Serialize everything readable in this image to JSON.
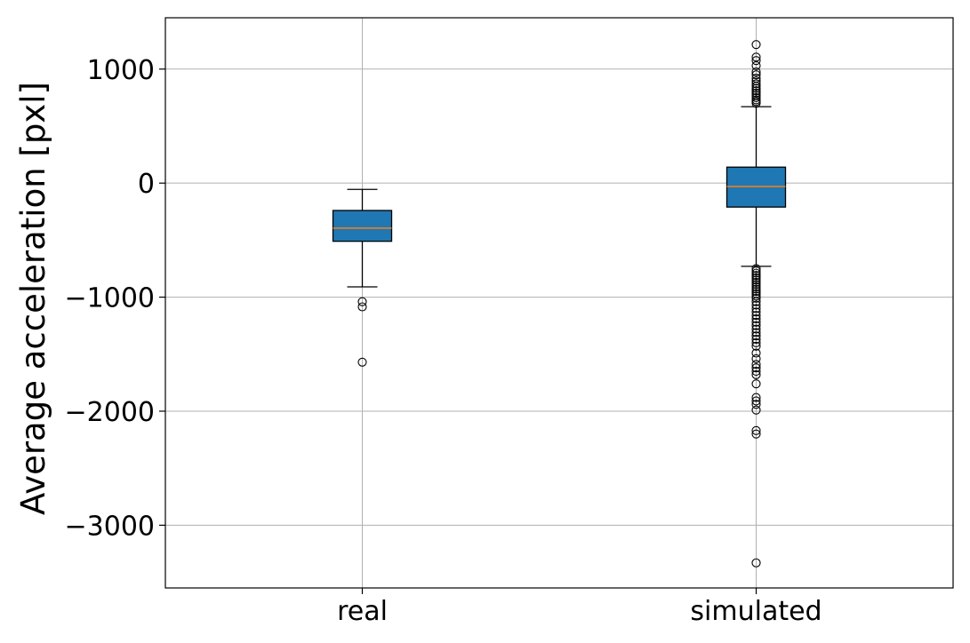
{
  "chart_data": {
    "type": "box",
    "title": "",
    "xlabel": "",
    "ylabel": "Average acceleration [pxl]",
    "categories": [
      "real",
      "simulated"
    ],
    "ylim": [
      -3550,
      1450
    ],
    "y_ticks": [
      1000,
      0,
      -1000,
      -2000,
      -3000
    ],
    "y_tick_labels": [
      "1000",
      "0",
      "−1000",
      "−2000",
      "−3000"
    ],
    "grid": true,
    "colors": {
      "box_fill": "#1f77b4",
      "median": "#ff7f0e",
      "grid": "#b0b0b0"
    },
    "boxes": [
      {
        "category": "real",
        "whisker_low": -910,
        "q1": -510,
        "median": -395,
        "q3": -240,
        "whisker_high": -55,
        "outliers": [
          -1040,
          -1085,
          -1570
        ]
      },
      {
        "category": "simulated",
        "whisker_low": -730,
        "q1": -210,
        "median": -30,
        "q3": 140,
        "whisker_high": 670,
        "outliers": [
          1215,
          1105,
          1075,
          1030,
          975,
          950,
          920,
          895,
          870,
          850,
          830,
          810,
          790,
          770,
          750,
          730,
          715,
          700,
          -750,
          -770,
          -790,
          -810,
          -830,
          -850,
          -870,
          -890,
          -910,
          -930,
          -950,
          -970,
          -990,
          -1010,
          -1040,
          -1070,
          -1100,
          -1130,
          -1160,
          -1190,
          -1220,
          -1250,
          -1280,
          -1310,
          -1340,
          -1370,
          -1400,
          -1430,
          -1490,
          -1540,
          -1590,
          -1620,
          -1650,
          -1680,
          -1760,
          -1880,
          -1910,
          -1940,
          -1990,
          -2170,
          -2200,
          -3330
        ]
      }
    ]
  }
}
